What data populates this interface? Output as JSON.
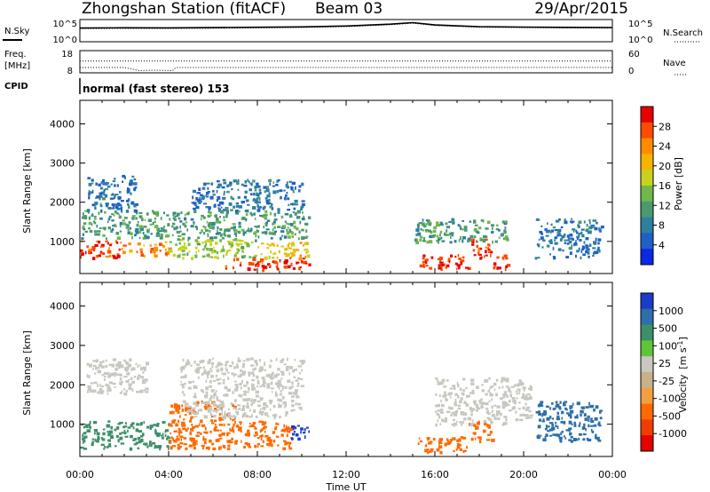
{
  "header": {
    "station": "Zhongshan Station (fitACF)",
    "beam": "Beam 03",
    "date": "29/Apr/2015"
  },
  "noise_panel": {
    "left_label": "N.Sky",
    "left_ticks": [
      "10^5",
      "10^0"
    ],
    "right_label": "N.Search",
    "right_ticks": [
      "10^5",
      "10^0"
    ]
  },
  "freq_panel": {
    "left_label_1": "Freq.",
    "left_label_2": "[MHz]",
    "left_ticks": [
      "18",
      "8"
    ],
    "right_label": "Nave",
    "right_ticks": [
      "60",
      "0"
    ]
  },
  "cpid": {
    "label": "CPID",
    "mode_text": "normal (fast stereo) 153"
  },
  "x_axis": {
    "label": "Time UT",
    "ticks": [
      "00:00",
      "04:00",
      "08:00",
      "12:00",
      "16:00",
      "20:00",
      "00:00"
    ]
  },
  "power_panel": {
    "ylabel": "Slant Range [km]",
    "yticks": [
      "4000",
      "3000",
      "2000",
      "1000"
    ],
    "colorbar_label": "Power [dB]",
    "colorbar_ticks": [
      "28",
      "24",
      "20",
      "16",
      "12",
      "8",
      "4"
    ],
    "colorbar_colors": [
      "#e60000",
      "#ff4a00",
      "#ff8c00",
      "#f5b400",
      "#c8d21e",
      "#6fb84a",
      "#4a9a6e",
      "#2e7fa0",
      "#1f5fc8",
      "#0a28e6"
    ]
  },
  "velocity_panel": {
    "ylabel": "Slant Range [km]",
    "yticks": [
      "4000",
      "3000",
      "2000",
      "1000"
    ],
    "colorbar_label_main": "Velocity",
    "colorbar_label_units": "[m s",
    "colorbar_label_exp": "-1",
    "colorbar_label_close": "]",
    "colorbar_ticks": [
      "1000",
      "500",
      "100",
      "25",
      "-25",
      "-100",
      "-500",
      "-1000"
    ],
    "colorbar_colors": [
      "#1a3cc8",
      "#2d6fa8",
      "#3d8f6a",
      "#5fc43a",
      "#c8c8c0",
      "#c8b08a",
      "#f0a040",
      "#ff6a00",
      "#f03c00",
      "#e60000"
    ]
  },
  "chart_data": [
    {
      "type": "line",
      "title": "N.Sky / N.Search",
      "x": [
        "00:00",
        "02:00",
        "04:00",
        "06:00",
        "08:00",
        "10:00",
        "12:00",
        "14:00",
        "15:00",
        "16:00",
        "18:00",
        "20:00",
        "22:00",
        "24:00"
      ],
      "series": [
        {
          "name": "N.Sky",
          "values": [
            1200,
            1400,
            1300,
            1500,
            1800,
            2200,
            3500,
            9000,
            20000,
            6000,
            2500,
            2000,
            1700,
            1600
          ]
        },
        {
          "name": "N.Search",
          "values": [
            900,
            1000,
            1000,
            1100,
            1300,
            1700,
            2600,
            7000,
            15000,
            4500,
            1800,
            1500,
            1300,
            1200
          ]
        }
      ],
      "ylim": [
        1,
        100000
      ]
    },
    {
      "type": "line",
      "title": "Freq / Nave",
      "x": [
        "00:00",
        "02:00",
        "02:40",
        "03:20",
        "04:10",
        "04:20",
        "08:00",
        "12:00",
        "16:00",
        "20:00",
        "24:00"
      ],
      "series": [
        {
          "name": "Freq.",
          "values": [
            10.4,
            10.4,
            9.0,
            9.2,
            9.0,
            10.4,
            10.4,
            10.4,
            10.4,
            10.4,
            10.4
          ]
        },
        {
          "name": "Nave",
          "values": [
            32,
            32,
            32,
            32,
            32,
            32,
            32,
            32,
            32,
            32,
            32
          ]
        }
      ]
    },
    {
      "type": "heatmap",
      "title": "Power",
      "xlabel": "Time UT",
      "ylabel": "Slant Range [km]",
      "xlim": [
        0,
        24
      ],
      "ylim": [
        180,
        4600
      ],
      "colorbar": "Power [dB]",
      "blobs": [
        {
          "t0": 0.0,
          "t1": 1.8,
          "r0": 600,
          "r1": 1100,
          "value": 28
        },
        {
          "t0": 1.8,
          "t1": 4.0,
          "r0": 650,
          "r1": 1000,
          "value": 24
        },
        {
          "t0": 0.0,
          "t1": 4.0,
          "r0": 1100,
          "r1": 1800,
          "value": 12
        },
        {
          "t0": 0.3,
          "t1": 2.5,
          "r0": 1800,
          "r1": 2700,
          "value": 8
        },
        {
          "t0": 4.0,
          "t1": 8.0,
          "r0": 600,
          "r1": 1100,
          "value": 16
        },
        {
          "t0": 4.0,
          "t1": 10.3,
          "r0": 1100,
          "r1": 1800,
          "value": 12
        },
        {
          "t0": 6.5,
          "t1": 10.3,
          "r0": 300,
          "r1": 600,
          "value": 28
        },
        {
          "t0": 8.0,
          "t1": 10.3,
          "r0": 600,
          "r1": 1000,
          "value": 20
        },
        {
          "t0": 5.0,
          "t1": 10.0,
          "r0": 1800,
          "r1": 2600,
          "value": 8
        },
        {
          "t0": 15.2,
          "t1": 17.5,
          "r0": 300,
          "r1": 700,
          "value": 28
        },
        {
          "t0": 17.5,
          "t1": 18.6,
          "r0": 600,
          "r1": 1100,
          "value": 28
        },
        {
          "t0": 15.0,
          "t1": 19.3,
          "r0": 1000,
          "r1": 1600,
          "value": 12
        },
        {
          "t0": 18.6,
          "t1": 19.3,
          "r0": 300,
          "r1": 700,
          "value": 28
        },
        {
          "t0": 20.5,
          "t1": 23.5,
          "r0": 600,
          "r1": 1600,
          "value": 8
        }
      ]
    },
    {
      "type": "heatmap",
      "title": "Velocity",
      "xlabel": "Time UT",
      "ylabel": "Slant Range [km]",
      "xlim": [
        0,
        24
      ],
      "ylim": [
        180,
        4600
      ],
      "colorbar": "Velocity [m s-1]",
      "blobs": [
        {
          "t0": 0.0,
          "t1": 4.0,
          "r0": 400,
          "r1": 1100,
          "value": 100
        },
        {
          "t0": 4.0,
          "t1": 7.0,
          "r0": 400,
          "r1": 1600,
          "value": -500
        },
        {
          "t0": 7.0,
          "t1": 9.5,
          "r0": 400,
          "r1": 1100,
          "value": -500
        },
        {
          "t0": 0.3,
          "t1": 3.0,
          "r0": 1800,
          "r1": 2700,
          "value": -25
        },
        {
          "t0": 4.5,
          "t1": 10.0,
          "r0": 1200,
          "r1": 2700,
          "value": -25
        },
        {
          "t0": 9.5,
          "t1": 10.3,
          "r0": 600,
          "r1": 1000,
          "value": 1000
        },
        {
          "t0": 15.2,
          "t1": 17.5,
          "r0": 300,
          "r1": 700,
          "value": -500
        },
        {
          "t0": 17.5,
          "t1": 18.6,
          "r0": 600,
          "r1": 1100,
          "value": -500
        },
        {
          "t0": 16.0,
          "t1": 20.3,
          "r0": 1000,
          "r1": 2200,
          "value": -25
        },
        {
          "t0": 20.5,
          "t1": 23.5,
          "r0": 600,
          "r1": 1600,
          "value": 500
        }
      ]
    }
  ]
}
